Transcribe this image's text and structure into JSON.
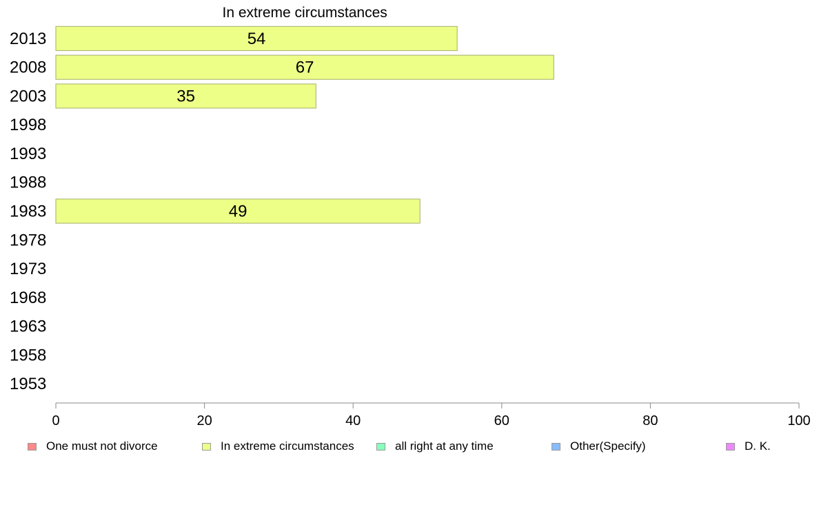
{
  "chart_data": {
    "type": "bar",
    "orientation": "horizontal",
    "title": "In extreme circumstances",
    "categories": [
      "2013",
      "2008",
      "2003",
      "1998",
      "1993",
      "1988",
      "1983",
      "1978",
      "1973",
      "1968",
      "1963",
      "1958",
      "1953"
    ],
    "series": [
      {
        "name": "In extreme circumstances",
        "values": [
          54,
          67,
          35,
          null,
          null,
          null,
          49,
          null,
          null,
          null,
          null,
          null,
          null
        ],
        "color": "#eeff88"
      }
    ],
    "xlim": [
      0,
      100
    ],
    "xticks": [
      "0",
      "20",
      "40",
      "60",
      "80",
      "100"
    ],
    "grid": false,
    "legend_position": "bottom",
    "legend": [
      {
        "label": "One must not divorce",
        "color": "#ff8888"
      },
      {
        "label": "In extreme circumstances",
        "color": "#eeff88"
      },
      {
        "label": "all right at any time",
        "color": "#88ffbb"
      },
      {
        "label": "Other(Specify)",
        "color": "#88bbff"
      },
      {
        "label": "D. K.",
        "color": "#ee88ff"
      }
    ]
  }
}
